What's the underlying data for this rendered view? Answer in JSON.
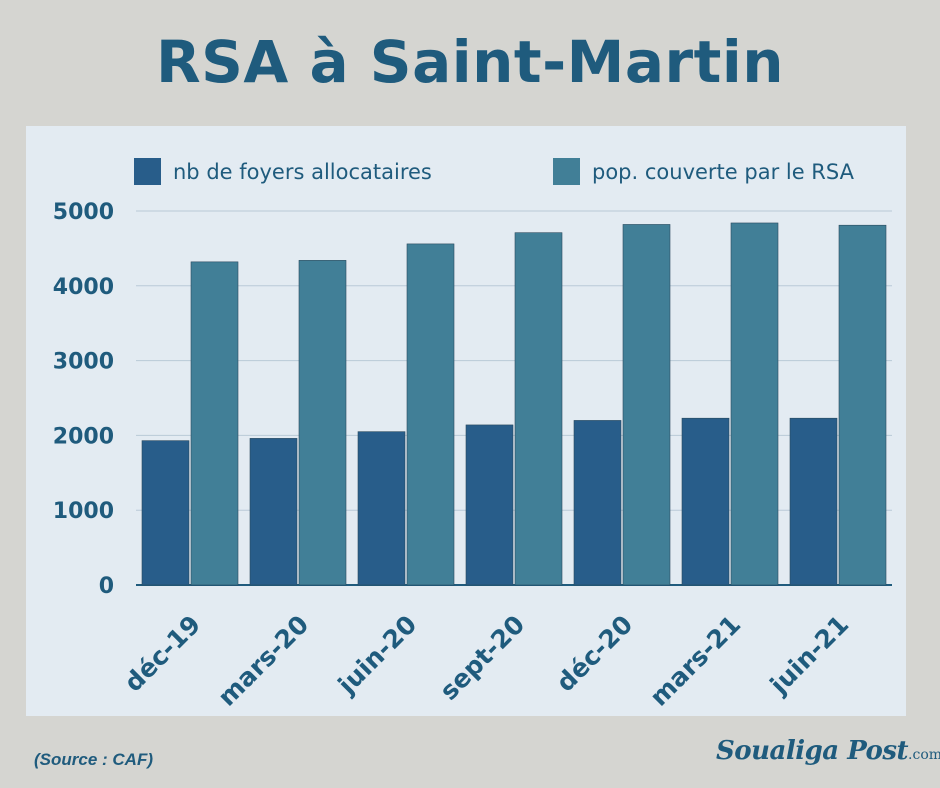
{
  "page": {
    "title": "RSA à Saint-Martin",
    "source": "(Source : CAF)",
    "logo_main": "Soualiga Post",
    "logo_domain": ".com"
  },
  "colors": {
    "background": "#d5d5d1",
    "panel": "#e3ebf2",
    "title": "#1f5b7d",
    "series_1": "#285d8a",
    "series_2": "#417f97",
    "axis_text": "#1f5b7d"
  },
  "chart_data": {
    "type": "bar",
    "categories": [
      "déc-19",
      "mars-20",
      "juin-20",
      "sept-20",
      "déc-20",
      "mars-21",
      "juin-21"
    ],
    "series": [
      {
        "name": "nb de foyers allocataires",
        "values": [
          1930,
          1960,
          2050,
          2140,
          2200,
          2230,
          2230
        ]
      },
      {
        "name": "pop. couverte par le RSA",
        "values": [
          4320,
          4340,
          4560,
          4710,
          4820,
          4840,
          4810
        ]
      }
    ],
    "yticks": [
      0,
      1000,
      2000,
      3000,
      4000,
      5000
    ],
    "ytick_labels": [
      "0",
      "1000",
      "2000",
      "3000",
      "4000",
      "5000"
    ],
    "ylim": [
      0,
      5000
    ],
    "grid": true,
    "legend": "top"
  }
}
